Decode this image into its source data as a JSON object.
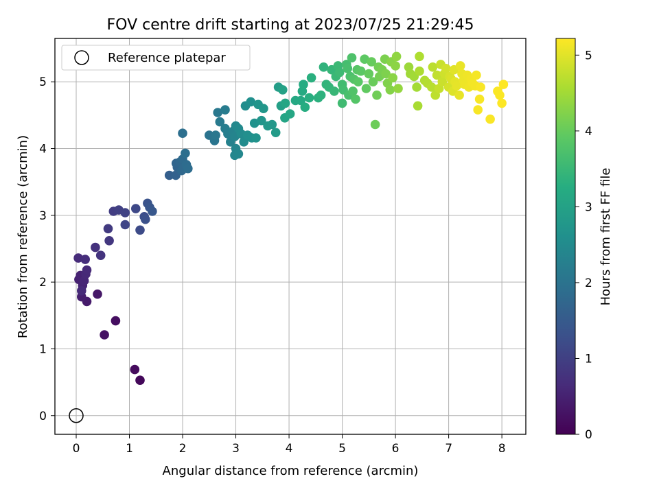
{
  "chart_data": {
    "type": "scatter",
    "title": "FOV centre drift starting at 2023/07/25 21:29:45",
    "xlabel": "Angular distance from reference (arcmin)",
    "ylabel": "Rotation from reference (arcmin)",
    "xlim": [
      -0.4,
      8.45
    ],
    "ylim": [
      -0.28,
      5.65
    ],
    "xticks": [
      0,
      1,
      2,
      3,
      4,
      5,
      6,
      7,
      8
    ],
    "yticks": [
      0,
      1,
      2,
      3,
      4,
      5
    ],
    "grid": true,
    "legend": {
      "placement": "top-left",
      "entries": [
        "Reference platepar"
      ]
    },
    "reference_point": {
      "x": 0,
      "y": 0
    },
    "colorbar": {
      "label": "Hours from first FF file",
      "colormap": "viridis",
      "range": [
        0,
        5.22
      ],
      "ticks": [
        0,
        1,
        2,
        3,
        4,
        5
      ]
    },
    "points": [
      [
        1.2,
        0.53,
        0.1
      ],
      [
        1.1,
        0.69,
        0.15
      ],
      [
        0.74,
        1.42,
        0.2
      ],
      [
        0.53,
        1.21,
        0.25
      ],
      [
        0.4,
        1.82,
        0.35
      ],
      [
        0.2,
        1.71,
        0.4
      ],
      [
        0.1,
        1.78,
        0.45
      ],
      [
        0.05,
        2.04,
        0.5
      ],
      [
        0.08,
        2.1,
        0.52
      ],
      [
        0.12,
        1.95,
        0.55
      ],
      [
        0.15,
        2.02,
        0.58
      ],
      [
        0.18,
        2.12,
        0.6
      ],
      [
        0.2,
        2.18,
        0.62
      ],
      [
        0.1,
        1.87,
        0.64
      ],
      [
        0.04,
        2.36,
        0.66
      ],
      [
        0.17,
        2.34,
        0.68
      ],
      [
        0.36,
        2.52,
        0.75
      ],
      [
        0.46,
        2.4,
        0.8
      ],
      [
        0.62,
        2.62,
        0.85
      ],
      [
        0.6,
        2.8,
        0.9
      ],
      [
        0.7,
        3.06,
        0.95
      ],
      [
        0.8,
        3.08,
        1.0
      ],
      [
        0.92,
        3.04,
        1.05
      ],
      [
        0.92,
        2.86,
        1.1
      ],
      [
        1.12,
        3.1,
        1.15
      ],
      [
        1.2,
        2.78,
        1.2
      ],
      [
        1.28,
        2.98,
        1.25
      ],
      [
        1.3,
        2.94,
        1.3
      ],
      [
        1.34,
        3.18,
        1.35
      ],
      [
        1.38,
        3.12,
        1.4
      ],
      [
        1.43,
        3.06,
        1.45
      ],
      [
        1.75,
        3.6,
        1.6
      ],
      [
        1.87,
        3.6,
        1.65
      ],
      [
        1.9,
        3.72,
        1.7
      ],
      [
        1.88,
        3.78,
        1.72
      ],
      [
        1.95,
        3.8,
        1.75
      ],
      [
        1.98,
        3.67,
        1.78
      ],
      [
        2.02,
        3.72,
        1.8
      ],
      [
        2.0,
        3.84,
        1.82
      ],
      [
        2.07,
        3.76,
        1.85
      ],
      [
        2.1,
        3.7,
        1.88
      ],
      [
        2.05,
        3.93,
        1.9
      ],
      [
        2.0,
        4.23,
        1.92
      ],
      [
        2.5,
        4.2,
        2.0
      ],
      [
        2.6,
        4.12,
        2.05
      ],
      [
        2.62,
        4.2,
        2.08
      ],
      [
        2.66,
        4.54,
        2.1
      ],
      [
        2.7,
        4.4,
        2.15
      ],
      [
        2.8,
        4.58,
        2.18
      ],
      [
        2.8,
        4.3,
        2.2
      ],
      [
        2.85,
        4.22,
        2.25
      ],
      [
        2.9,
        4.1,
        2.3
      ],
      [
        2.95,
        4.26,
        2.32
      ],
      [
        2.98,
        4.18,
        2.35
      ],
      [
        3.0,
        4.0,
        2.38
      ],
      [
        2.98,
        3.9,
        2.4
      ],
      [
        3.05,
        3.92,
        2.42
      ],
      [
        3.0,
        4.34,
        2.45
      ],
      [
        3.05,
        4.3,
        2.48
      ],
      [
        3.1,
        4.22,
        2.5
      ],
      [
        3.15,
        4.1,
        2.52
      ],
      [
        3.18,
        4.64,
        2.55
      ],
      [
        3.22,
        4.2,
        2.58
      ],
      [
        3.28,
        4.7,
        2.6
      ],
      [
        3.3,
        4.16,
        2.62
      ],
      [
        3.35,
        4.38,
        2.65
      ],
      [
        3.38,
        4.16,
        2.68
      ],
      [
        3.42,
        4.66,
        2.7
      ],
      [
        3.48,
        4.42,
        2.72
      ],
      [
        3.52,
        4.6,
        2.75
      ],
      [
        3.6,
        4.34,
        2.78
      ],
      [
        3.68,
        4.36,
        2.8
      ],
      [
        3.75,
        4.24,
        2.85
      ],
      [
        3.8,
        4.92,
        2.9
      ],
      [
        3.85,
        4.64,
        2.95
      ],
      [
        3.88,
        4.88,
        3.0
      ],
      [
        3.92,
        4.46,
        3.05
      ],
      [
        3.93,
        4.68,
        3.08
      ],
      [
        4.02,
        4.52,
        3.1
      ],
      [
        4.12,
        4.72,
        3.15
      ],
      [
        4.22,
        4.72,
        3.18
      ],
      [
        4.25,
        4.86,
        3.2
      ],
      [
        4.27,
        4.96,
        3.22
      ],
      [
        4.3,
        4.62,
        3.25
      ],
      [
        4.38,
        4.76,
        3.28
      ],
      [
        4.42,
        5.06,
        3.3
      ],
      [
        4.55,
        4.76,
        3.32
      ],
      [
        4.6,
        4.8,
        3.35
      ],
      [
        4.65,
        5.22,
        3.38
      ],
      [
        4.7,
        4.96,
        3.4
      ],
      [
        4.75,
        4.92,
        3.42
      ],
      [
        4.8,
        5.18,
        3.45
      ],
      [
        4.85,
        4.86,
        3.48
      ],
      [
        4.88,
        5.08,
        3.5
      ],
      [
        4.92,
        5.24,
        3.52
      ],
      [
        4.95,
        5.14,
        3.55
      ],
      [
        5.0,
        4.68,
        3.58
      ],
      [
        5.0,
        4.96,
        3.6
      ],
      [
        5.02,
        4.88,
        3.62
      ],
      [
        5.08,
        5.26,
        3.65
      ],
      [
        5.1,
        5.2,
        3.68
      ],
      [
        5.12,
        4.8,
        3.7
      ],
      [
        5.15,
        5.08,
        3.72
      ],
      [
        5.18,
        5.36,
        3.75
      ],
      [
        5.2,
        4.86,
        3.78
      ],
      [
        5.22,
        5.04,
        3.8
      ],
      [
        5.25,
        4.74,
        3.82
      ],
      [
        5.28,
        5.18,
        3.85
      ],
      [
        5.3,
        5.0,
        3.88
      ],
      [
        5.35,
        5.16,
        3.9
      ],
      [
        5.42,
        5.34,
        3.92
      ],
      [
        5.45,
        4.9,
        3.95
      ],
      [
        5.5,
        5.12,
        3.98
      ],
      [
        5.55,
        5.3,
        4.0
      ],
      [
        5.58,
        5.0,
        4.02
      ],
      [
        5.62,
        4.36,
        4.05
      ],
      [
        5.65,
        4.8,
        4.08
      ],
      [
        5.68,
        5.22,
        4.1
      ],
      [
        5.7,
        5.08,
        4.12
      ],
      [
        5.75,
        5.18,
        4.15
      ],
      [
        5.8,
        5.34,
        4.18
      ],
      [
        5.82,
        5.12,
        4.2
      ],
      [
        5.85,
        4.98,
        4.22
      ],
      [
        5.9,
        4.88,
        4.25
      ],
      [
        5.92,
        5.3,
        4.28
      ],
      [
        5.95,
        5.06,
        4.3
      ],
      [
        6.0,
        5.24,
        4.32
      ],
      [
        6.02,
        5.38,
        4.35
      ],
      [
        6.05,
        4.9,
        4.38
      ],
      [
        6.25,
        5.22,
        4.45
      ],
      [
        6.28,
        5.12,
        4.48
      ],
      [
        6.35,
        5.08,
        4.5
      ],
      [
        6.4,
        4.92,
        4.52
      ],
      [
        6.42,
        4.64,
        4.55
      ],
      [
        6.45,
        5.16,
        4.58
      ],
      [
        6.45,
        5.38,
        4.6
      ],
      [
        6.55,
        5.02,
        4.62
      ],
      [
        6.6,
        4.98,
        4.65
      ],
      [
        6.68,
        4.92,
        4.68
      ],
      [
        6.7,
        5.22,
        4.7
      ],
      [
        6.75,
        4.8,
        4.72
      ],
      [
        6.78,
        5.1,
        4.75
      ],
      [
        6.82,
        4.9,
        4.78
      ],
      [
        6.85,
        5.26,
        4.8
      ],
      [
        6.88,
        5.0,
        4.82
      ],
      [
        6.92,
        5.12,
        4.85
      ],
      [
        6.95,
        5.2,
        4.88
      ],
      [
        7.0,
        4.92,
        4.9
      ],
      [
        7.02,
        5.08,
        4.92
      ],
      [
        7.05,
        5.04,
        4.95
      ],
      [
        7.08,
        4.86,
        4.97
      ],
      [
        7.1,
        5.18,
        5.0
      ],
      [
        7.12,
        5.0,
        5.02
      ],
      [
        7.15,
        4.94,
        5.04
      ],
      [
        7.2,
        4.8,
        5.05
      ],
      [
        7.22,
        5.24,
        5.06
      ],
      [
        7.25,
        5.12,
        5.08
      ],
      [
        7.28,
        5.02,
        5.09
      ],
      [
        7.3,
        4.96,
        5.1
      ],
      [
        7.35,
        5.1,
        5.11
      ],
      [
        7.38,
        4.92,
        5.12
      ],
      [
        7.42,
        5.04,
        5.13
      ],
      [
        7.45,
        4.98,
        5.14
      ],
      [
        7.5,
        4.94,
        5.15
      ],
      [
        7.52,
        5.1,
        5.16
      ],
      [
        7.55,
        4.58,
        5.17
      ],
      [
        7.58,
        4.74,
        5.17
      ],
      [
        7.6,
        4.92,
        5.18
      ],
      [
        7.78,
        4.44,
        5.19
      ],
      [
        7.92,
        4.86,
        5.2
      ],
      [
        7.96,
        4.8,
        5.2
      ],
      [
        8.0,
        4.68,
        5.21
      ],
      [
        8.03,
        4.96,
        5.22
      ]
    ]
  }
}
